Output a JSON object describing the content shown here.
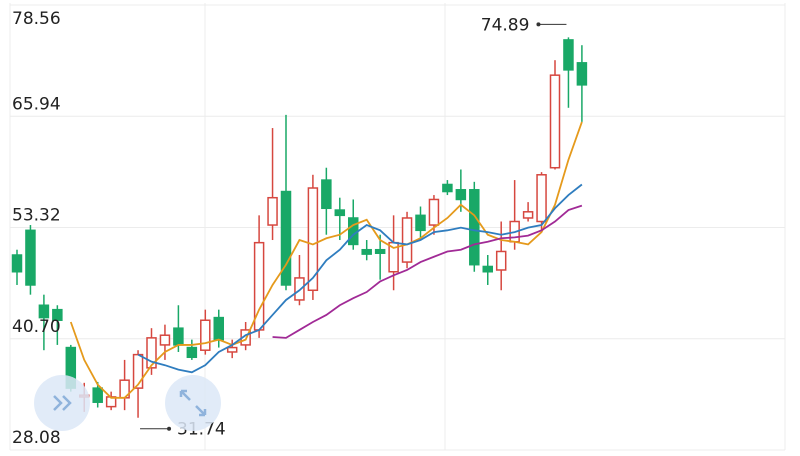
{
  "chart_data": {
    "type": "candlestick",
    "ylim": [
      28.08,
      78.56
    ],
    "yticks": [
      78.56,
      65.94,
      53.32,
      {
        "value": 40.7,
        "label": "40.70"
      },
      28.08
    ],
    "grid": true,
    "up_color": "#d6473f",
    "down_color": "#19a867",
    "open": [
      50.2,
      53.0,
      44.5,
      44.0,
      39.7,
      34.1,
      35.1,
      33.0,
      34.0,
      35.1,
      37.4,
      40.0,
      41.9,
      39.7,
      39.4,
      43.1,
      39.2,
      40.0,
      41.7,
      53.6,
      57.4,
      45.1,
      46.2,
      58.7,
      55.3,
      54.4,
      50.8,
      50.8,
      48.3,
      49.4,
      54.7,
      53.6,
      58.2,
      57.6,
      57.6,
      48.9,
      48.5,
      51.7,
      54.4,
      54.0,
      60.1,
      74.6,
      72.0
    ],
    "high": [
      50.8,
      53.6,
      45.7,
      44.5,
      40.0,
      35.7,
      35.8,
      34.7,
      38.3,
      39.4,
      41.9,
      42.3,
      44.5,
      40.6,
      44.0,
      44.0,
      40.6,
      42.6,
      54.7,
      64.6,
      66.1,
      50.2,
      59.3,
      60.1,
      56.7,
      56.5,
      51.9,
      52.5,
      54.7,
      55.1,
      55.7,
      57.0,
      58.7,
      59.9,
      58.5,
      50.2,
      54.0,
      58.7,
      56.2,
      59.6,
      72.3,
      74.89,
      74.0
    ],
    "low": [
      46.8,
      45.7,
      39.4,
      40.0,
      34.7,
      32.4,
      32.9,
      32.6,
      32.6,
      31.74,
      36.6,
      38.3,
      39.2,
      38.3,
      38.9,
      39.7,
      38.5,
      39.4,
      40.8,
      51.9,
      46.2,
      44.5,
      45.1,
      52.5,
      51.9,
      50.8,
      49.6,
      47.4,
      46.2,
      48.7,
      52.1,
      52.5,
      57.0,
      55.1,
      48.3,
      46.8,
      46.2,
      50.8,
      54.0,
      53.0,
      59.9,
      66.9,
      65.3
    ],
    "close": [
      48.3,
      46.8,
      43.1,
      42.8,
      35.1,
      34.3,
      33.5,
      34.1,
      36.0,
      38.9,
      40.8,
      41.1,
      40.0,
      38.6,
      42.8,
      40.6,
      39.7,
      41.7,
      51.6,
      56.7,
      46.8,
      47.6,
      57.8,
      55.5,
      54.7,
      51.4,
      50.3,
      50.4,
      51.6,
      54.4,
      53.0,
      56.5,
      57.4,
      56.5,
      49.1,
      48.3,
      50.6,
      54.0,
      55.1,
      59.3,
      70.6,
      71.2,
      69.5
    ],
    "lines": [
      {
        "color": "#e59a1c",
        "values": [
          null,
          null,
          null,
          null,
          42.6,
          38.3,
          35.5,
          34.0,
          34.0,
          35.5,
          37.7,
          39.2,
          40.0,
          40.0,
          40.2,
          40.6,
          40.0,
          40.6,
          44.0,
          46.8,
          49.1,
          51.9,
          51.4,
          52.1,
          52.5,
          53.6,
          54.2,
          51.9,
          51.0,
          51.4,
          52.1,
          53.3,
          54.4,
          55.9,
          54.7,
          52.5,
          51.9,
          51.7,
          51.4,
          52.8,
          55.9,
          61.0,
          65.3
        ]
      },
      {
        "color": "#2f7dbf",
        "values": [
          null,
          null,
          null,
          null,
          null,
          null,
          null,
          null,
          null,
          38.9,
          38.1,
          37.7,
          37.2,
          36.9,
          37.7,
          39.2,
          40.0,
          41.1,
          41.7,
          43.4,
          45.1,
          46.2,
          47.6,
          49.6,
          50.8,
          52.5,
          53.6,
          53.0,
          51.6,
          51.4,
          51.9,
          52.8,
          53.0,
          53.3,
          53.0,
          52.8,
          52.5,
          52.8,
          53.3,
          53.6,
          55.5,
          57.0,
          58.2
        ]
      },
      {
        "color": "#a12a96",
        "values": [
          null,
          null,
          null,
          null,
          null,
          null,
          null,
          null,
          null,
          null,
          null,
          null,
          null,
          null,
          null,
          null,
          null,
          null,
          null,
          40.9,
          40.8,
          41.7,
          42.6,
          43.4,
          44.5,
          45.3,
          46.0,
          47.2,
          47.9,
          48.5,
          49.4,
          50.0,
          50.6,
          50.8,
          51.4,
          51.7,
          52.1,
          52.2,
          52.4,
          53.0,
          54.0,
          55.3,
          55.8
        ]
      }
    ]
  }
}
